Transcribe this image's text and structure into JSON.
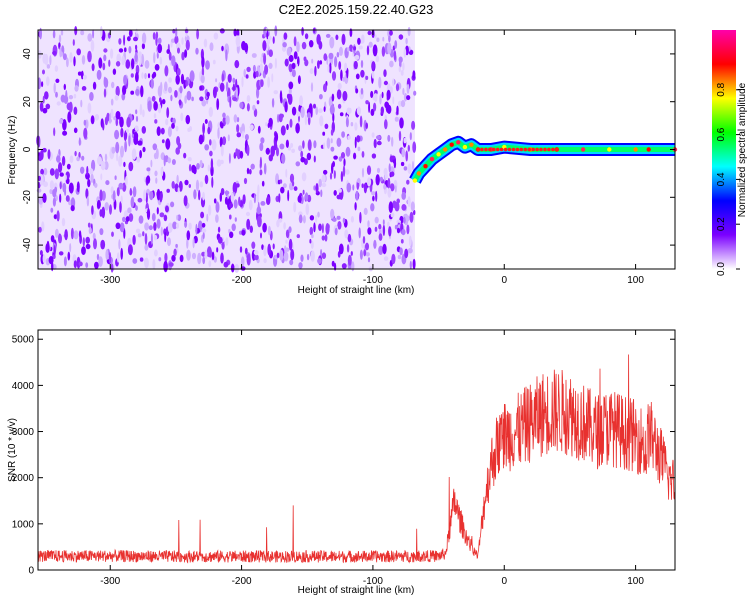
{
  "title": "C2E2.2025.159.22.40.G23",
  "chart_data": [
    {
      "type": "heatmap",
      "xlabel": "Height of straight line (km)",
      "ylabel": "Frequency (Hz)",
      "xlim": [
        -355,
        130
      ],
      "ylim": [
        -50,
        50
      ],
      "xticks": [
        -300,
        -200,
        -100,
        0,
        100
      ],
      "yticks": [
        -40,
        -20,
        0,
        20,
        40
      ],
      "colorbar": {
        "label": "Normalized spectral amplitude",
        "range": [
          0,
          1
        ],
        "ticks": [
          "0.0",
          "0.2",
          "0.4",
          "0.6",
          "0.8"
        ],
        "colors": [
          "#ffffff",
          "#7b00ff",
          "#0000ff",
          "#00ffff",
          "#00ff00",
          "#ffff00",
          "#ff0000",
          "#ff00aa"
        ]
      },
      "noise_region": {
        "x": [
          -355,
          -68
        ],
        "y": [
          -50,
          50
        ],
        "level": 0.15
      },
      "signal_track": {
        "x": [
          -68,
          -65,
          -60,
          -55,
          -50,
          -45,
          -40,
          -35,
          -30,
          -25,
          -20,
          -10,
          0,
          20,
          40,
          60,
          80,
          100,
          110,
          130
        ],
        "y": [
          -13,
          -10,
          -7,
          -4,
          -2,
          0,
          2,
          3,
          1,
          2,
          0,
          0,
          1,
          0,
          0,
          0,
          0,
          0,
          0,
          0
        ]
      }
    },
    {
      "type": "line",
      "xlabel": "Height of straight line (km)",
      "ylabel": "SNR (10 * v/v)",
      "xlim": [
        -355,
        130
      ],
      "ylim": [
        0,
        5200
      ],
      "xticks": [
        -300,
        -200,
        -100,
        0,
        100
      ],
      "yticks": [
        0,
        1000,
        2000,
        3000,
        4000,
        5000
      ],
      "series": [
        {
          "color": "#e8312f",
          "x": [
            -355,
            -300,
            -250,
            -200,
            -150,
            -100,
            -50,
            -45,
            -42,
            -38,
            -35,
            -30,
            -25,
            -20,
            -15,
            -10,
            -5,
            0,
            10,
            20,
            30,
            40,
            50,
            60,
            70,
            80,
            90,
            100,
            105,
            108,
            110,
            115,
            120,
            125,
            130
          ],
          "values": [
            250,
            250,
            240,
            240,
            240,
            240,
            250,
            300,
            800,
            1500,
            1200,
            800,
            500,
            300,
            1500,
            2300,
            2700,
            2900,
            3000,
            3200,
            3400,
            3450,
            3400,
            3200,
            3000,
            3100,
            3000,
            2900,
            2800,
            2500,
            3000,
            2700,
            2400,
            2000,
            1900
          ]
        }
      ]
    }
  ]
}
